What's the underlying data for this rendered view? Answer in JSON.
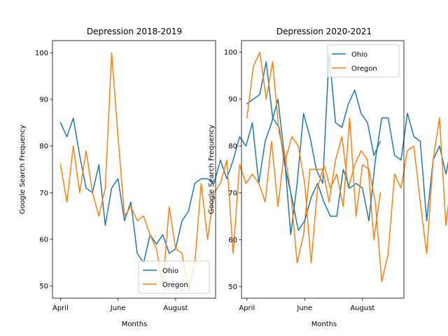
{
  "chart_data": [
    {
      "type": "line",
      "title": "Depression 2018-2019",
      "xlabel": "Months",
      "ylabel": "Google Search Frequency",
      "x_ticks": [
        "April",
        "June",
        "August"
      ],
      "x_tick_positions": [
        0,
        9,
        18
      ],
      "ylim": [
        47.4,
        102.6
      ],
      "y_ticks": [
        50,
        60,
        70,
        80,
        90,
        100
      ],
      "xlim": [
        -1.25,
        24.25
      ],
      "legend": "lower-right",
      "series": [
        {
          "name": "Ohio",
          "color": "#1f77b4",
          "values": [
            85,
            82,
            86,
            78,
            71,
            70,
            76,
            63,
            71,
            73,
            64,
            68,
            57,
            55,
            61,
            59,
            61,
            57,
            58,
            64,
            66,
            72,
            73,
            73,
            72,
            77,
            73,
            77,
            82,
            80,
            85,
            72,
            81,
            85,
            90,
            78,
            61,
            72,
            87,
            82,
            75,
            72,
            100,
            85,
            84,
            89,
            92,
            87,
            85,
            78,
            81
          ]
        },
        {
          "name": "Oregon",
          "color": "#ff7f0e",
          "values": [
            76,
            68,
            80,
            70,
            79,
            70,
            65,
            71,
            100,
            82,
            65,
            67,
            64,
            65,
            61,
            58,
            50,
            67,
            58,
            57,
            49,
            55,
            72,
            60,
            70,
            72,
            77,
            57,
            76,
            72,
            74,
            72,
            68,
            81,
            67,
            79,
            70,
            55,
            61,
            75,
            75,
            75,
            68,
            77,
            82,
            71,
            76,
            79,
            77,
            60,
            70
          ]
        }
      ]
    },
    {
      "type": "line",
      "title": "Depression 2020-2021",
      "xlabel": "Months",
      "ylabel": "Google Search Frequency",
      "x_ticks": [
        "April",
        "June",
        "August"
      ],
      "x_tick_positions": [
        0,
        9,
        18
      ],
      "ylim": [
        47.5,
        102.5
      ],
      "y_ticks": [
        50,
        60,
        70,
        80,
        90,
        100
      ],
      "xlim": [
        -0.85,
        24.45
      ],
      "legend": "upper-right",
      "series": [
        {
          "name": "Ohio",
          "color": "#1f77b4",
          "values": [
            89,
            90,
            91,
            98,
            86,
            84,
            75,
            69,
            62,
            64,
            69,
            72,
            68,
            65,
            65,
            75,
            71,
            72,
            71,
            64,
            77,
            86,
            86,
            78,
            77,
            87,
            82,
            81,
            64,
            77,
            80,
            74,
            81,
            79,
            76,
            60,
            64,
            76,
            75,
            75,
            86,
            88,
            85,
            80,
            82,
            80,
            74,
            74,
            79,
            69
          ]
        },
        {
          "name": "Oregon",
          "color": "#ff7f0e",
          "values": [
            86,
            97,
            100,
            90,
            98,
            83,
            77,
            82,
            80,
            72,
            55,
            71,
            76,
            71,
            74,
            67,
            86,
            65,
            76,
            75,
            68,
            51,
            57,
            74,
            71,
            79,
            80,
            68,
            57,
            77,
            86,
            63,
            75,
            79,
            80,
            57,
            63,
            81,
            84,
            73,
            74,
            77,
            75,
            78,
            73,
            75,
            84,
            72,
            56,
            69
          ]
        }
      ]
    }
  ]
}
